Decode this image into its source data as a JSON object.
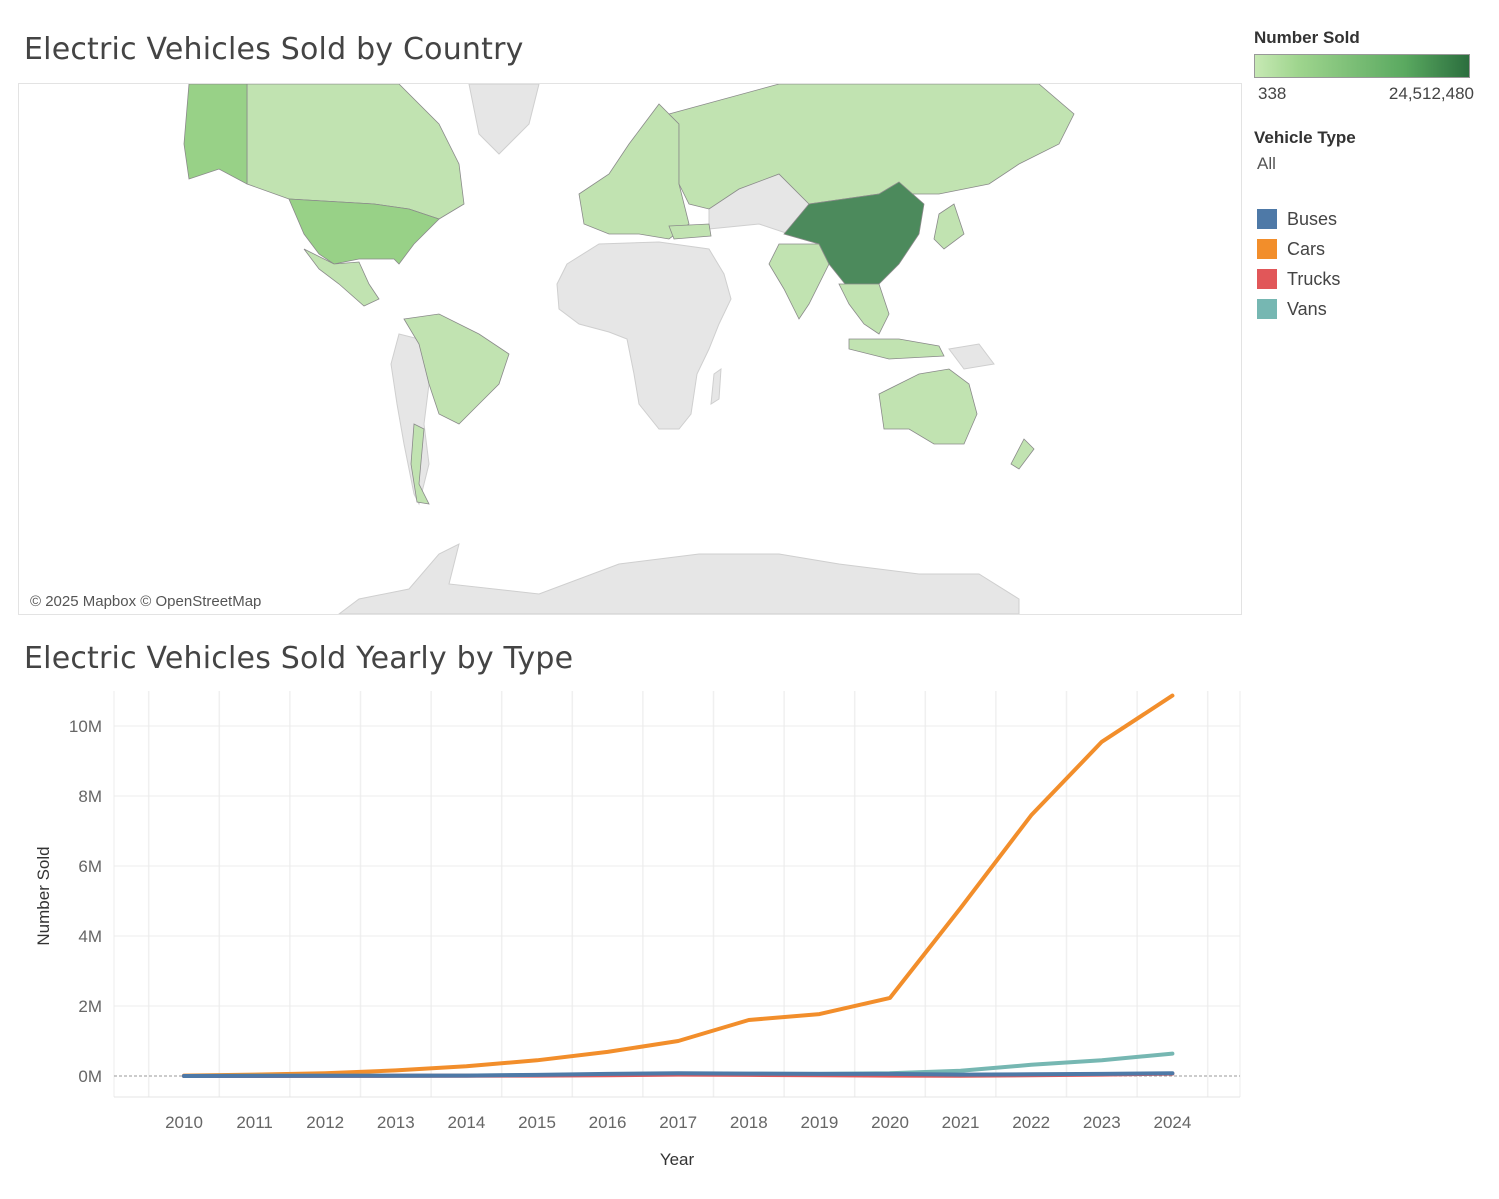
{
  "map": {
    "title": "Electric Vehicles Sold by Country",
    "credit": "© 2025 Mapbox © OpenStreetMap"
  },
  "legend": {
    "color_title": "Number Sold",
    "color_min": "338",
    "color_max": "24,512,480",
    "filter_title": "Vehicle Type",
    "filter_value": "All",
    "items": [
      {
        "label": "Buses",
        "color": "#4e79a7"
      },
      {
        "label": "Cars",
        "color": "#f28e2b"
      },
      {
        "label": "Trucks",
        "color": "#e15759"
      },
      {
        "label": "Vans",
        "color": "#76b7b2"
      }
    ]
  },
  "chart_data": {
    "type": "line",
    "title": "Electric Vehicles Sold Yearly by Type",
    "xlabel": "Year",
    "ylabel": "Number Sold",
    "x": [
      2010,
      2011,
      2012,
      2013,
      2014,
      2015,
      2016,
      2017,
      2018,
      2019,
      2020,
      2021,
      2022,
      2023,
      2024
    ],
    "ylim": [
      -600000,
      11000000
    ],
    "yticks": [
      0,
      2000000,
      4000000,
      6000000,
      8000000,
      10000000
    ],
    "ytick_labels": [
      "0M",
      "2M",
      "4M",
      "6M",
      "8M",
      "10M"
    ],
    "series": [
      {
        "name": "Cars",
        "color": "#f28e2b",
        "values": [
          10000,
          40000,
          80000,
          160000,
          280000,
          450000,
          690000,
          1000000,
          1600000,
          1770000,
          2230000,
          4800000,
          7450000,
          9550000,
          10870000
        ]
      },
      {
        "name": "Vans",
        "color": "#76b7b2",
        "values": [
          0,
          5000,
          8000,
          10000,
          15000,
          20000,
          30000,
          50000,
          60000,
          60000,
          80000,
          150000,
          320000,
          450000,
          640000
        ]
      },
      {
        "name": "Trucks",
        "color": "#e15759",
        "values": [
          0,
          0,
          2000,
          5000,
          8000,
          10000,
          20000,
          40000,
          30000,
          20000,
          10000,
          5000,
          20000,
          40000,
          70000
        ]
      },
      {
        "name": "Buses",
        "color": "#4e79a7",
        "values": [
          0,
          3000,
          5000,
          7000,
          10000,
          30000,
          60000,
          80000,
          70000,
          60000,
          60000,
          40000,
          50000,
          60000,
          80000
        ]
      }
    ],
    "grid": true,
    "legend": "right"
  }
}
